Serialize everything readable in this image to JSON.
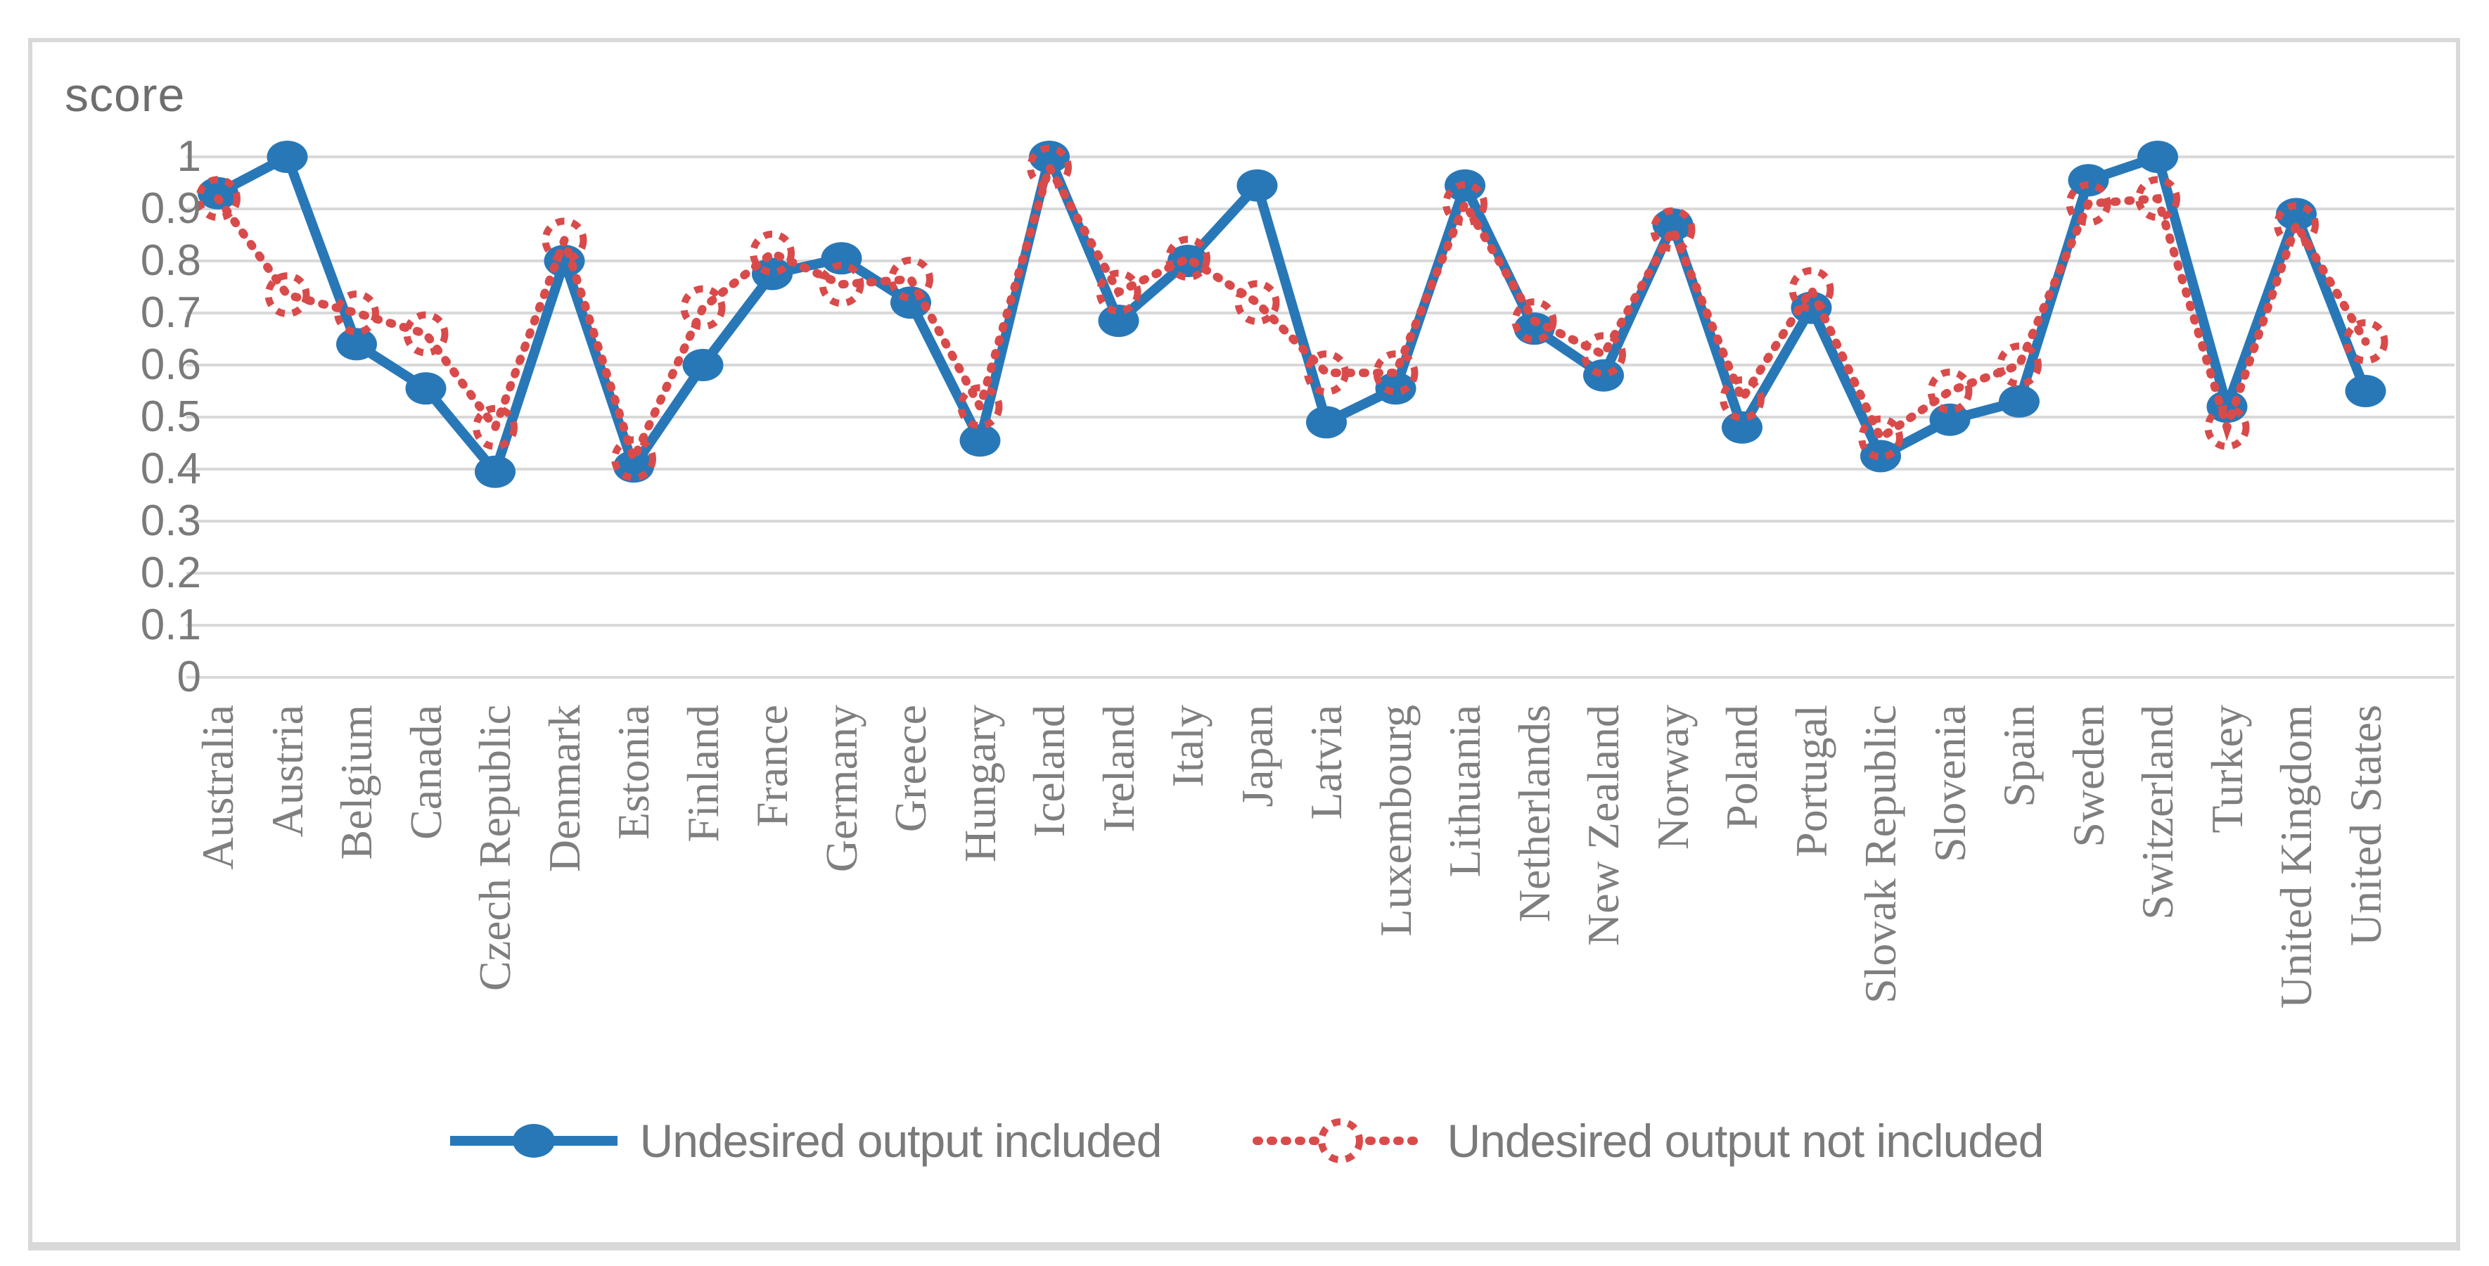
{
  "chart": {
    "colors": {
      "included": "#2878B8",
      "not_included": "#D94B4B",
      "gridline": "#D9D9D9",
      "frame": "#D9D9D9",
      "text": "#7F7F7F"
    }
  },
  "chart_data": {
    "type": "line",
    "title": "",
    "ylabel": "score",
    "xlabel": "",
    "ylim": [
      0,
      1
    ],
    "grid": "horizontal",
    "legend_position": "bottom",
    "yticks": [
      0,
      0.1,
      0.2,
      0.3,
      0.4,
      0.5,
      0.6,
      0.7,
      0.8,
      0.9,
      1
    ],
    "ytick_labels": [
      "0",
      "0.1",
      "0.2",
      "0.3",
      "0.4",
      "0.5",
      "0.6",
      "0.7",
      "0.8",
      "0.9",
      "1"
    ],
    "categories": [
      "Australia",
      "Austria",
      "Belgium",
      "Canada",
      "Czech Republic",
      "Denmark",
      "Estonia",
      "Finland",
      "France",
      "Germany",
      "Greece",
      "Hungary",
      "Iceland",
      "Ireland",
      "Italy",
      "Japan",
      "Latvia",
      "Luxembourg",
      "Lithuania",
      "Netherlands",
      "New Zealand",
      "Norway",
      "Poland",
      "Portugal",
      "Slovak Republic",
      "Slovenia",
      "Spain",
      "Sweden",
      "Switzerland",
      "Turkey",
      "United Kingdom",
      "United States"
    ],
    "series": [
      {
        "name": "Undesired output included",
        "style": "solid_filled_circle",
        "color": "#2878B8",
        "values": [
          0.93,
          1.0,
          0.64,
          0.555,
          0.395,
          0.8,
          0.405,
          0.6,
          0.775,
          0.805,
          0.72,
          0.455,
          1.0,
          0.685,
          0.8,
          0.945,
          0.49,
          0.555,
          0.945,
          0.67,
          0.58,
          0.87,
          0.48,
          0.71,
          0.425,
          0.495,
          0.53,
          0.955,
          1.0,
          0.52,
          0.89,
          0.55
        ]
      },
      {
        "name": "Undesired output not included",
        "style": "dotted_open_circle",
        "color": "#D94B4B",
        "values": [
          0.92,
          0.735,
          0.7,
          0.66,
          0.48,
          0.84,
          0.42,
          0.71,
          0.815,
          0.755,
          0.765,
          0.52,
          0.98,
          0.74,
          0.805,
          0.72,
          0.585,
          0.585,
          0.91,
          0.685,
          0.62,
          0.86,
          0.535,
          0.745,
          0.46,
          0.55,
          0.6,
          0.91,
          0.92,
          0.48,
          0.87,
          0.645
        ]
      }
    ]
  }
}
